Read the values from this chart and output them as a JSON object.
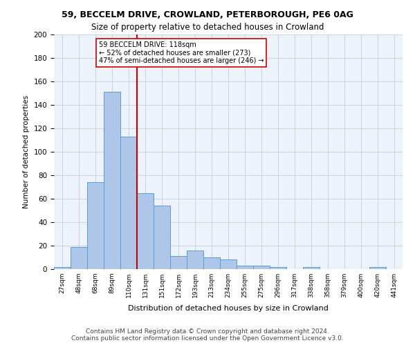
{
  "title1": "59, BECCELM DRIVE, CROWLAND, PETERBOROUGH, PE6 0AG",
  "title2": "Size of property relative to detached houses in Crowland",
  "xlabel": "Distribution of detached houses by size in Crowland",
  "ylabel": "Number of detached properties",
  "footnote": "Contains HM Land Registry data © Crown copyright and database right 2024.\nContains public sector information licensed under the Open Government Licence v3.0.",
  "bin_labels": [
    "27sqm",
    "48sqm",
    "68sqm",
    "89sqm",
    "110sqm",
    "131sqm",
    "151sqm",
    "172sqm",
    "193sqm",
    "213sqm",
    "234sqm",
    "255sqm",
    "275sqm",
    "296sqm",
    "317sqm",
    "338sqm",
    "358sqm",
    "379sqm",
    "400sqm",
    "420sqm",
    "441sqm"
  ],
  "bar_values": [
    2,
    19,
    74,
    151,
    113,
    65,
    54,
    11,
    16,
    10,
    8,
    3,
    3,
    2,
    0,
    2,
    0,
    0,
    0,
    2,
    0
  ],
  "bar_color": "#aec6e8",
  "bar_edge_color": "#5b9bd5",
  "grid_color": "#c8d8e8",
  "background_color": "#eef3fb",
  "vline_x": 4.5,
  "vline_color": "#cc0000",
  "annotation_text": "59 BECCELM DRIVE: 118sqm\n← 52% of detached houses are smaller (273)\n47% of semi-detached houses are larger (246) →",
  "annotation_box_color": "#ffffff",
  "annotation_box_edge": "#cc0000",
  "ylim": [
    0,
    200
  ],
  "yticks": [
    0,
    20,
    40,
    60,
    80,
    100,
    120,
    140,
    160,
    180,
    200
  ]
}
